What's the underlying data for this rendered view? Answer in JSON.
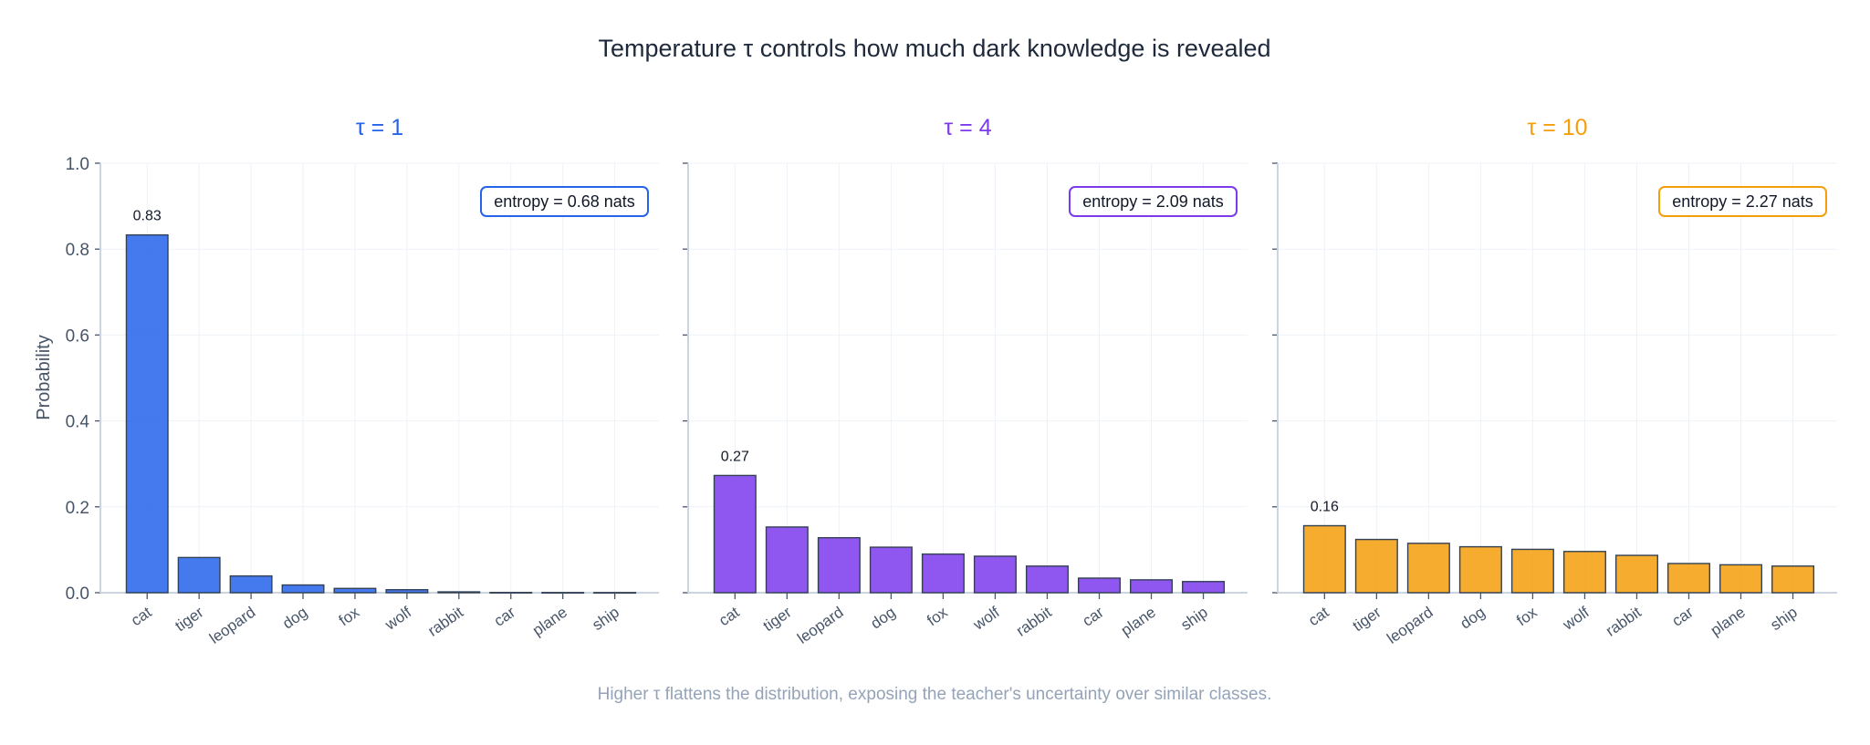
{
  "chart_data": {
    "type": "bar",
    "title": "Temperature τ controls how much dark knowledge is revealed",
    "footnote": "Higher τ flattens the distribution, exposing the teacher's uncertainty over similar classes.",
    "ylabel": "Probability",
    "ylim": [
      0,
      1.0
    ],
    "yticks": [
      "0.0",
      "0.2",
      "0.4",
      "0.6",
      "0.8",
      "1.0"
    ],
    "grid": true,
    "sharey": true,
    "categories": [
      "cat",
      "tiger",
      "leopard",
      "dog",
      "fox",
      "wolf",
      "rabbit",
      "car",
      "plane",
      "ship"
    ],
    "panels": [
      {
        "title": "τ = 1",
        "color": "#2563eb",
        "values": [
          0.833,
          0.082,
          0.039,
          0.018,
          0.01,
          0.007,
          0.002,
          0.0005,
          0.0004,
          0.0003
        ],
        "max_label": "0.83",
        "annotation": "entropy = 0.68 nats"
      },
      {
        "title": "τ = 4",
        "color": "#7c3aed",
        "values": [
          0.273,
          0.153,
          0.128,
          0.106,
          0.09,
          0.085,
          0.062,
          0.034,
          0.03,
          0.026
        ],
        "max_label": "0.27",
        "annotation": "entropy = 2.09 nats"
      },
      {
        "title": "τ = 10",
        "color": "#f59e0b",
        "values": [
          0.156,
          0.124,
          0.115,
          0.107,
          0.101,
          0.096,
          0.087,
          0.068,
          0.065,
          0.062
        ],
        "max_label": "0.16",
        "annotation": "entropy = 2.27 nats"
      }
    ]
  }
}
